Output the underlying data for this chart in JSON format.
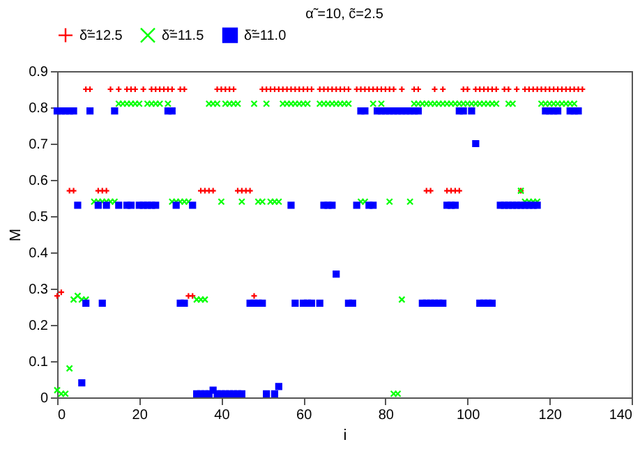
{
  "chart_data": {
    "type": "scatter",
    "title": "α̃ =10, c̃=2.5",
    "xlabel": "i",
    "ylabel": "M",
    "xlim": [
      0,
      140
    ],
    "xticks": [
      0,
      20,
      40,
      60,
      80,
      100,
      120,
      140
    ],
    "ylim": [
      0,
      0.9
    ],
    "yticks": [
      0,
      0.1,
      0.2,
      0.3,
      0.4,
      0.5,
      0.6,
      0.7,
      0.8,
      0.9
    ],
    "grid": false,
    "legend": "top",
    "series": [
      {
        "name": "δ̃=12.5",
        "color": "#ff0000",
        "marker": "cross",
        "x": [
          0,
          1,
          3,
          4,
          7,
          8,
          10,
          11,
          12,
          13,
          15,
          17,
          18,
          19,
          21,
          23,
          24,
          25,
          26,
          27,
          28,
          30,
          31,
          32,
          33,
          35,
          36,
          37,
          38,
          39,
          40,
          41,
          42,
          43,
          44,
          45,
          46,
          47,
          48,
          50,
          51,
          52,
          53,
          54,
          55,
          56,
          57,
          58,
          59,
          60,
          61,
          62,
          64,
          65,
          66,
          67,
          68,
          69,
          70,
          71,
          73,
          74,
          75,
          76,
          77,
          78,
          79,
          80,
          81,
          82,
          84,
          87,
          88,
          90,
          91,
          92,
          94,
          95,
          96,
          97,
          98,
          99,
          100,
          102,
          103,
          104,
          105,
          106,
          107,
          109,
          110,
          112,
          113,
          114,
          115,
          116,
          117,
          118,
          119,
          120,
          121,
          122,
          123,
          124,
          125,
          126,
          127,
          128
        ],
        "values": [
          0.28,
          0.29,
          0.57,
          0.57,
          0.85,
          0.85,
          0.57,
          0.57,
          0.57,
          0.85,
          0.85,
          0.85,
          0.85,
          0.85,
          0.85,
          0.85,
          0.85,
          0.85,
          0.85,
          0.85,
          0.85,
          0.85,
          0.85,
          0.28,
          0.28,
          0.57,
          0.57,
          0.57,
          0.57,
          0.85,
          0.85,
          0.85,
          0.85,
          0.85,
          0.57,
          0.57,
          0.57,
          0.57,
          0.28,
          0.85,
          0.85,
          0.85,
          0.85,
          0.85,
          0.85,
          0.85,
          0.85,
          0.85,
          0.85,
          0.85,
          0.85,
          0.85,
          0.85,
          0.85,
          0.85,
          0.85,
          0.85,
          0.85,
          0.85,
          0.85,
          0.85,
          0.85,
          0.85,
          0.85,
          0.85,
          0.85,
          0.85,
          0.85,
          0.85,
          0.85,
          0.85,
          0.85,
          0.85,
          0.57,
          0.57,
          0.85,
          0.85,
          0.57,
          0.57,
          0.57,
          0.57,
          0.85,
          0.85,
          0.85,
          0.85,
          0.85,
          0.85,
          0.85,
          0.85,
          0.85,
          0.85,
          0.85,
          0.57,
          0.85,
          0.85,
          0.85,
          0.85,
          0.85,
          0.85,
          0.85,
          0.85,
          0.85,
          0.85,
          0.85,
          0.85,
          0.85,
          0.85,
          0.85
        ]
      },
      {
        "name": "δ̃=11.5",
        "color": "#00ff00",
        "marker": "cross",
        "x": [
          0,
          1,
          2,
          3,
          4,
          5,
          6,
          7,
          9,
          10,
          11,
          12,
          13,
          14,
          15,
          16,
          17,
          18,
          19,
          20,
          22,
          23,
          24,
          25,
          27,
          28,
          29,
          30,
          31,
          32,
          34,
          35,
          36,
          37,
          38,
          39,
          40,
          41,
          42,
          43,
          44,
          45,
          48,
          49,
          50,
          51,
          52,
          53,
          54,
          55,
          56,
          57,
          58,
          59,
          60,
          61,
          64,
          65,
          66,
          67,
          68,
          69,
          70,
          71,
          74,
          75,
          77,
          79,
          81,
          82,
          83,
          84,
          86,
          87,
          88,
          89,
          90,
          91,
          92,
          93,
          94,
          95,
          96,
          97,
          98,
          99,
          100,
          101,
          102,
          103,
          104,
          105,
          106,
          107,
          110,
          111,
          113,
          114,
          115,
          116,
          117,
          118,
          119,
          120,
          121,
          122,
          123,
          124,
          125,
          126
        ],
        "values": [
          0.02,
          0.01,
          0.01,
          0.08,
          0.27,
          0.28,
          0.27,
          0.27,
          0.54,
          0.54,
          0.54,
          0.54,
          0.54,
          0.54,
          0.81,
          0.81,
          0.81,
          0.81,
          0.81,
          0.81,
          0.81,
          0.81,
          0.81,
          0.81,
          0.81,
          0.54,
          0.54,
          0.54,
          0.54,
          0.54,
          0.27,
          0.27,
          0.27,
          0.81,
          0.81,
          0.81,
          0.54,
          0.81,
          0.81,
          0.81,
          0.81,
          0.54,
          0.81,
          0.54,
          0.54,
          0.81,
          0.54,
          0.54,
          0.54,
          0.81,
          0.81,
          0.81,
          0.81,
          0.81,
          0.81,
          0.81,
          0.81,
          0.81,
          0.81,
          0.81,
          0.81,
          0.81,
          0.81,
          0.81,
          0.54,
          0.54,
          0.81,
          0.81,
          0.54,
          0.01,
          0.01,
          0.27,
          0.54,
          0.81,
          0.81,
          0.81,
          0.81,
          0.81,
          0.81,
          0.81,
          0.81,
          0.81,
          0.81,
          0.81,
          0.81,
          0.81,
          0.81,
          0.81,
          0.81,
          0.81,
          0.81,
          0.81,
          0.81,
          0.81,
          0.81,
          0.81,
          0.57,
          0.54,
          0.54,
          0.54,
          0.54,
          0.81,
          0.81,
          0.81,
          0.81,
          0.81,
          0.81,
          0.81,
          0.81,
          0.81
        ]
      },
      {
        "name": "δ̃=11.0",
        "color": "#0000ff",
        "marker": "square",
        "x": [
          0,
          1,
          2,
          3,
          4,
          5,
          6,
          7,
          8,
          10,
          11,
          12,
          14,
          15,
          17,
          18,
          20,
          21,
          22,
          23,
          24,
          27,
          28,
          29,
          30,
          31,
          33,
          34,
          35,
          36,
          37,
          38,
          39,
          40,
          41,
          42,
          43,
          44,
          45,
          47,
          48,
          49,
          50,
          51,
          53,
          54,
          57,
          58,
          60,
          61,
          62,
          64,
          65,
          66,
          67,
          68,
          71,
          72,
          73,
          74,
          75,
          76,
          77,
          78,
          79,
          80,
          81,
          82,
          83,
          84,
          85,
          86,
          87,
          88,
          89,
          90,
          91,
          92,
          93,
          94,
          95,
          96,
          97,
          98,
          99,
          101,
          102,
          103,
          104,
          105,
          106,
          108,
          109,
          110,
          111,
          112,
          113,
          114,
          115,
          116,
          117,
          119,
          120,
          121,
          122,
          125,
          126,
          127
        ],
        "values": [
          0.79,
          0.79,
          0.79,
          0.79,
          0.79,
          0.53,
          0.04,
          0.26,
          0.79,
          0.53,
          0.26,
          0.53,
          0.79,
          0.53,
          0.53,
          0.53,
          0.53,
          0.53,
          0.53,
          0.53,
          0.53,
          0.79,
          0.79,
          0.53,
          0.26,
          0.26,
          0.53,
          0.01,
          0.01,
          0.01,
          0.01,
          0.02,
          0.01,
          0.01,
          0.01,
          0.01,
          0.01,
          0.01,
          0.01,
          0.26,
          0.26,
          0.26,
          0.26,
          0.01,
          0.01,
          0.03,
          0.53,
          0.26,
          0.26,
          0.26,
          0.26,
          0.26,
          0.53,
          0.53,
          0.53,
          0.34,
          0.26,
          0.26,
          0.53,
          0.79,
          0.79,
          0.53,
          0.53,
          0.79,
          0.79,
          0.79,
          0.79,
          0.79,
          0.79,
          0.79,
          0.79,
          0.79,
          0.79,
          0.79,
          0.26,
          0.26,
          0.26,
          0.26,
          0.26,
          0.26,
          0.53,
          0.53,
          0.53,
          0.79,
          0.79,
          0.79,
          0.7,
          0.26,
          0.26,
          0.26,
          0.26,
          0.53,
          0.53,
          0.53,
          0.53,
          0.53,
          0.53,
          0.53,
          0.53,
          0.53,
          0.53,
          0.79,
          0.79,
          0.79,
          0.79,
          0.79,
          0.79,
          0.79
        ]
      }
    ]
  }
}
